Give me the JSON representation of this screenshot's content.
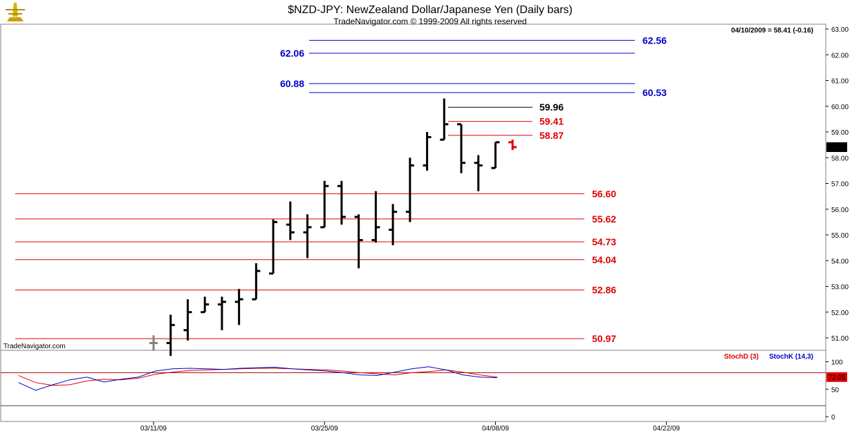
{
  "header": {
    "title": "$NZD-JPY:  NewZealand Dollar/Japanese Yen  (Daily bars)",
    "copyright": "TradeNavigator.com © 1999-2009 All rights reserved",
    "last_quote": "04/10/2009 = 58.41 (-0.16)",
    "watermark": "TradeNavigator.com"
  },
  "colors": {
    "red": "#e00000",
    "blue": "#0000c8",
    "bar": "#000000",
    "frame": "#808080"
  },
  "chart_data": [
    {
      "type": "ohlc",
      "ylim": [
        50.5,
        63.0
      ],
      "yticks": [
        "63.00",
        "62.00",
        "61.00",
        "60.00",
        "59.00",
        "58.00",
        "57.00",
        "56.00",
        "55.00",
        "54.00",
        "53.00",
        "52.00",
        "51.00"
      ],
      "ytick_values": [
        63,
        62,
        61,
        60,
        59,
        58,
        57,
        56,
        55,
        54,
        53,
        52,
        51
      ],
      "xticks": [
        "03/11/09",
        "03/25/09",
        "04/08/09",
        "04/22/09"
      ],
      "xtick_index": [
        7,
        17,
        27,
        37
      ],
      "last_price_label": "58.41",
      "last_price": 58.41,
      "bars": [
        {
          "i": 8,
          "o": 50.8,
          "h": 51.9,
          "l": 50.3,
          "c": 51.5
        },
        {
          "i": 9,
          "o": 51.3,
          "h": 52.5,
          "l": 50.9,
          "c": 52.0
        },
        {
          "i": 10,
          "o": 52.0,
          "h": 52.6,
          "l": 52.0,
          "c": 52.3
        },
        {
          "i": 11,
          "o": 52.3,
          "h": 52.6,
          "l": 51.3,
          "c": 52.4
        },
        {
          "i": 12,
          "o": 52.4,
          "h": 52.9,
          "l": 51.5,
          "c": 52.5
        },
        {
          "i": 13,
          "o": 52.5,
          "h": 53.9,
          "l": 52.5,
          "c": 53.6
        },
        {
          "i": 14,
          "o": 53.5,
          "h": 55.6,
          "l": 53.5,
          "c": 55.5
        },
        {
          "i": 15,
          "o": 55.4,
          "h": 56.3,
          "l": 54.8,
          "c": 55.1
        },
        {
          "i": 16,
          "o": 55.1,
          "h": 55.8,
          "l": 54.1,
          "c": 55.3
        },
        {
          "i": 17,
          "o": 55.3,
          "h": 57.1,
          "l": 55.3,
          "c": 56.9
        },
        {
          "i": 18,
          "o": 56.9,
          "h": 57.1,
          "l": 55.4,
          "c": 55.7
        },
        {
          "i": 19,
          "o": 55.7,
          "h": 55.8,
          "l": 53.7,
          "c": 54.8
        },
        {
          "i": 20,
          "o": 54.8,
          "h": 56.7,
          "l": 54.7,
          "c": 55.3
        },
        {
          "i": 21,
          "o": 55.2,
          "h": 56.2,
          "l": 54.6,
          "c": 55.9
        },
        {
          "i": 22,
          "o": 55.9,
          "h": 58.0,
          "l": 55.5,
          "c": 57.7
        },
        {
          "i": 23,
          "o": 57.7,
          "h": 59.0,
          "l": 57.5,
          "c": 58.8
        },
        {
          "i": 24,
          "o": 58.7,
          "h": 60.3,
          "l": 58.7,
          "c": 59.3
        },
        {
          "i": 25,
          "o": 59.3,
          "h": 59.3,
          "l": 57.4,
          "c": 57.8
        },
        {
          "i": 26,
          "o": 57.8,
          "h": 58.1,
          "l": 56.7,
          "c": 57.7
        },
        {
          "i": 27,
          "o": 57.6,
          "h": 58.6,
          "l": 57.6,
          "c": 58.6
        }
      ],
      "partial_bar": {
        "i": 7,
        "o": 50.8,
        "h": 51.1,
        "l": 50.5,
        "c": 50.8,
        "color": "#808080"
      },
      "current_bar": {
        "i": 28,
        "o": 58.6,
        "h": 58.7,
        "l": 58.3,
        "c": 58.41,
        "color": "#e00000"
      },
      "support_levels": [
        {
          "label": "56.60",
          "value": 56.6
        },
        {
          "label": "55.62",
          "value": 55.62
        },
        {
          "label": "54.73",
          "value": 54.73
        },
        {
          "label": "54.04",
          "value": 54.04
        },
        {
          "label": "52.86",
          "value": 52.86
        },
        {
          "label": "50.97",
          "value": 50.97
        }
      ],
      "target_levels": [
        {
          "label": "62.56",
          "value": 62.56,
          "side": "right"
        },
        {
          "label": "62.06",
          "value": 62.06,
          "side": "left"
        },
        {
          "label": "60.88",
          "value": 60.88,
          "side": "left"
        },
        {
          "label": "60.53",
          "value": 60.53,
          "side": "right"
        }
      ],
      "swing_levels": [
        {
          "label": "59.96",
          "value": 59.96,
          "color": "#000000"
        },
        {
          "label": "59.41",
          "value": 59.41,
          "color": "#e00000"
        },
        {
          "label": "58.87",
          "value": 58.87,
          "color": "#e00000"
        }
      ]
    },
    {
      "type": "line",
      "ylim": [
        0,
        100
      ],
      "yticks": [
        "100",
        "50",
        "0"
      ],
      "ytick_values": [
        100,
        50,
        0
      ],
      "reference_lines": [
        80,
        20
      ],
      "legend": [
        "StochD (3)",
        "StochK (14,3)"
      ],
      "last_value_label": "72.05",
      "last_value": 72.05,
      "series": [
        {
          "name": "StochD (3)",
          "color": "#e00000",
          "x": [
            0,
            1,
            2,
            3,
            4,
            5,
            6,
            7,
            8,
            9,
            10,
            11,
            12,
            13,
            14,
            15,
            16,
            17,
            18,
            19,
            20,
            21,
            22,
            23,
            24,
            25,
            26,
            27,
            28
          ],
          "values": [
            75,
            62,
            57,
            58,
            65,
            68,
            67,
            70,
            77,
            81,
            84,
            85,
            86,
            87,
            88,
            88,
            87,
            86,
            85,
            83,
            80,
            78,
            76,
            80,
            82,
            85,
            81,
            76,
            72
          ]
        },
        {
          "name": "StochK (14,3)",
          "color": "#0000c8",
          "x": [
            0,
            1,
            2,
            3,
            4,
            5,
            6,
            7,
            8,
            9,
            10,
            11,
            12,
            13,
            14,
            15,
            16,
            17,
            18,
            19,
            20,
            21,
            22,
            23,
            24,
            25,
            26,
            27,
            28
          ],
          "values": [
            62,
            48,
            58,
            67,
            72,
            63,
            68,
            72,
            83,
            87,
            88,
            87,
            86,
            88,
            89,
            90,
            87,
            85,
            83,
            80,
            76,
            75,
            81,
            87,
            91,
            85,
            76,
            72,
            71
          ]
        }
      ]
    }
  ]
}
